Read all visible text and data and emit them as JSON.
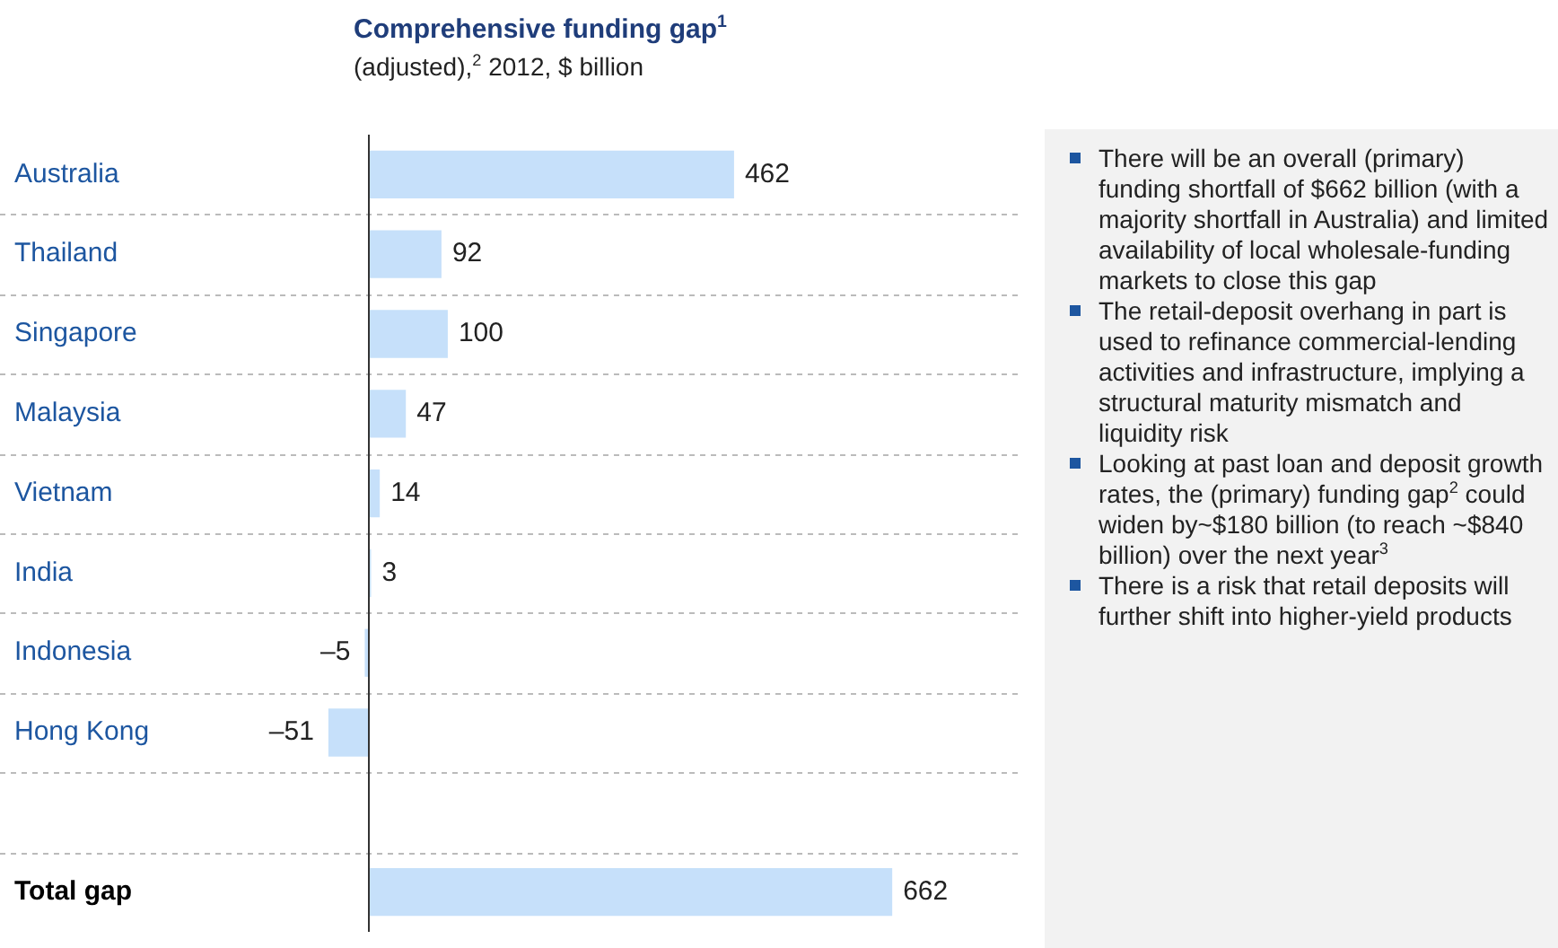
{
  "chart_data": {
    "type": "bar",
    "orientation": "horizontal",
    "title": "Comprehensive funding gap$^{1}$",
    "subtitle": "(adjusted),$^{2}$ 2012, $ billion",
    "categories": [
      "Australia",
      "Thailand",
      "Singapore",
      "Malaysia",
      "Vietnam",
      "India",
      "Indonesia",
      "Hong Kong",
      null,
      "Total gap"
    ],
    "values": [
      462,
      92,
      100,
      47,
      14,
      3,
      -5,
      -51,
      null,
      662
    ],
    "value_labels": [
      "462",
      "92",
      "100",
      "47",
      "14",
      "3",
      "–5",
      "–51",
      null,
      "662"
    ],
    "color": "#c6e0fa",
    "grid": "y",
    "annotations": [
      "There will be an overall (primary) funding shortfall of $662 billion (with a majority shortfall in Australia) and limited availability of local wholesale-funding markets to close this gap",
      "The retail-deposit overhang in part is used to refinance commercial-lending activities and infrastructure, implying a structural maturity mismatch and liquidity risk",
      "Looking at past loan and deposit growth rates, the (primary) funding gap$^{2}$ could widen by~$180 billion (to reach ~$840 billion) over the next year$^{3}$",
      "There is a risk that retail deposits will further shift into higher-yield products"
    ]
  }
}
